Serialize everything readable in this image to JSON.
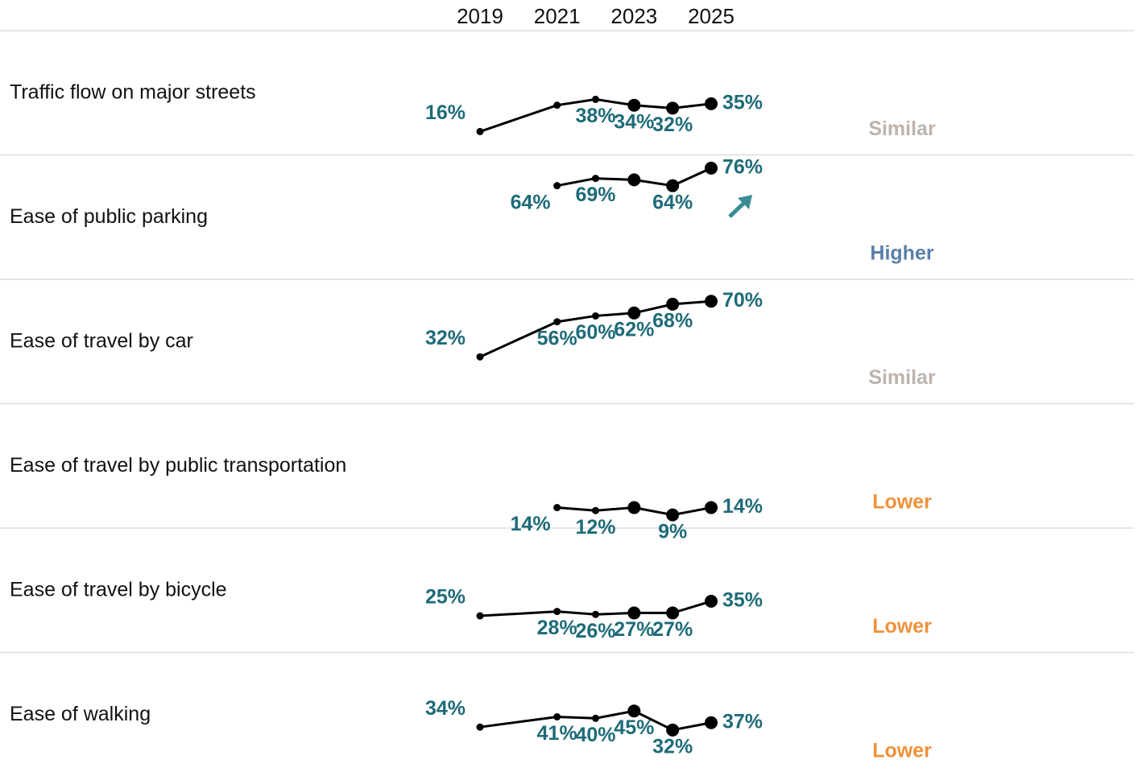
{
  "chart_data": {
    "type": "line",
    "x": [
      2019,
      2021,
      2022,
      2023,
      2024,
      2025
    ],
    "xlim": [
      2019,
      2025
    ],
    "xticks": [
      2019,
      2021,
      2023,
      2025
    ],
    "ylim": [
      0,
      85
    ],
    "line_color": "#000000",
    "label_color": "#1e6b78",
    "series": [
      {
        "name": "Traffic flow on major streets",
        "values": [
          16,
          34,
          38,
          34,
          32,
          35
        ],
        "value_labels": [
          "16%",
          null,
          "38%",
          "34%",
          "32%",
          "35%"
        ],
        "status": "Similar",
        "status_color": "#bdb3ad"
      },
      {
        "name": "Ease of public parking",
        "values": [
          null,
          64,
          69,
          68,
          64,
          76
        ],
        "value_labels": [
          null,
          "64%",
          "69%",
          null,
          "64%",
          "76%"
        ],
        "status": "Higher",
        "status_color": "#5a80aa"
      },
      {
        "name": "Ease of travel by car",
        "values": [
          32,
          56,
          60,
          62,
          68,
          70
        ],
        "value_labels": [
          "32%",
          "56%",
          "60%",
          "62%",
          "68%",
          "70%"
        ],
        "status": "Similar",
        "status_color": "#bdb3ad"
      },
      {
        "name": "Ease of travel by public transportation",
        "values": [
          null,
          14,
          12,
          14,
          9,
          14
        ],
        "value_labels": [
          null,
          "14%",
          "12%",
          null,
          "9%",
          "14%"
        ],
        "status": "Lower",
        "status_color": "#f0913a"
      },
      {
        "name": "Ease of travel by bicycle",
        "values": [
          25,
          28,
          26,
          27,
          27,
          35
        ],
        "value_labels": [
          "25%",
          "28%",
          "26%",
          "27%",
          "27%",
          "35%"
        ],
        "status": "Lower",
        "status_color": "#f0913a"
      },
      {
        "name": "Ease of walking",
        "values": [
          34,
          41,
          40,
          45,
          32,
          37
        ],
        "value_labels": [
          "34%",
          "41%",
          "40%",
          "45%",
          "32%",
          "37%"
        ],
        "status": "Lower",
        "status_color": "#f0913a"
      }
    ]
  }
}
